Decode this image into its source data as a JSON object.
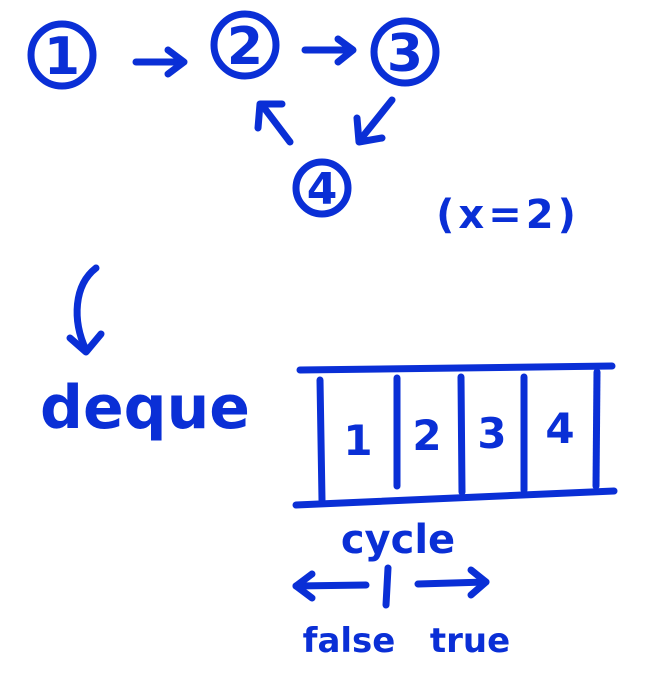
{
  "graph": {
    "nodes": [
      {
        "label": "1"
      },
      {
        "label": "2"
      },
      {
        "label": "3"
      },
      {
        "label": "4"
      }
    ],
    "edges": [
      {
        "from": "1",
        "to": "2"
      },
      {
        "from": "2",
        "to": "3"
      },
      {
        "from": "3",
        "to": "4"
      },
      {
        "from": "4",
        "to": "2"
      }
    ],
    "condition": "(x=2)"
  },
  "deque": {
    "label": "deque",
    "cells": [
      "1",
      "2",
      "3",
      "4"
    ]
  },
  "cycle": {
    "label": "cycle",
    "left_label": "false",
    "right_label": "true"
  },
  "colors": {
    "ink": "#0a2fd6",
    "background": "#ffffff"
  }
}
